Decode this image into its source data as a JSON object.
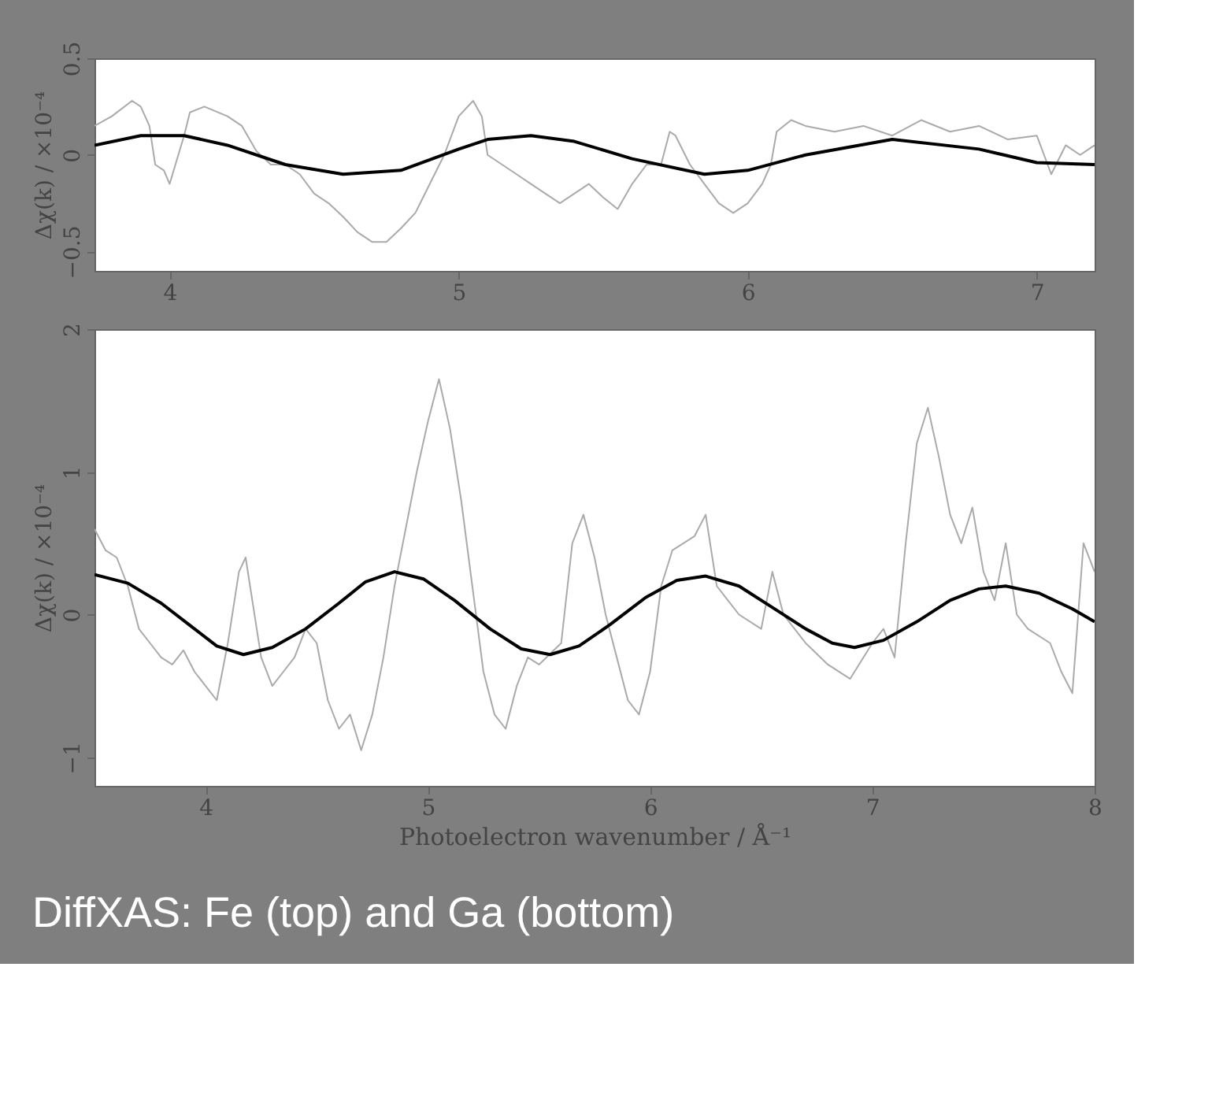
{
  "chart_data": [
    {
      "type": "line",
      "ylabel": "Δχ(k) / ×10⁻⁴",
      "xlim": [
        3.74,
        7.2
      ],
      "xticks": [
        4,
        5,
        6,
        7
      ],
      "ylim": [
        -0.6,
        0.5
      ],
      "yticks": [
        -0.5,
        0,
        0.5
      ],
      "grid": false,
      "line_style": "solid",
      "marker": "none",
      "series": [
        {
          "color": "#aaaaaa",
          "x": [
            3.74,
            3.8,
            3.87,
            3.9,
            3.93,
            3.95,
            3.98,
            4.0,
            4.02,
            4.05,
            4.07,
            4.12,
            4.2,
            4.25,
            4.3,
            4.35,
            4.4,
            4.45,
            4.5,
            4.55,
            4.6,
            4.65,
            4.7,
            4.75,
            4.8,
            4.85,
            4.9,
            4.95,
            5.0,
            5.05,
            5.08,
            5.1,
            5.15,
            5.2,
            5.25,
            5.3,
            5.35,
            5.4,
            5.45,
            5.5,
            5.55,
            5.6,
            5.65,
            5.7,
            5.73,
            5.75,
            5.8,
            5.85,
            5.9,
            5.95,
            6.0,
            6.05,
            6.08,
            6.1,
            6.15,
            6.2,
            6.3,
            6.4,
            6.5,
            6.6,
            6.7,
            6.8,
            6.9,
            7.0,
            7.05,
            7.1,
            7.15,
            7.2
          ],
          "values": [
            0.15,
            0.2,
            0.28,
            0.25,
            0.15,
            -0.05,
            -0.08,
            -0.15,
            -0.05,
            0.1,
            0.22,
            0.25,
            0.2,
            0.15,
            0.02,
            -0.05,
            -0.05,
            -0.1,
            -0.2,
            -0.25,
            -0.32,
            -0.4,
            -0.45,
            -0.45,
            -0.38,
            -0.3,
            -0.15,
            0.0,
            0.2,
            0.28,
            0.2,
            0.0,
            -0.05,
            -0.1,
            -0.15,
            -0.2,
            -0.25,
            -0.2,
            -0.15,
            -0.22,
            -0.28,
            -0.15,
            -0.05,
            -0.05,
            0.12,
            0.1,
            -0.05,
            -0.15,
            -0.25,
            -0.3,
            -0.25,
            -0.15,
            -0.05,
            0.12,
            0.18,
            0.15,
            0.12,
            0.15,
            0.1,
            0.18,
            0.12,
            0.15,
            0.08,
            0.1,
            -0.1,
            0.05,
            0.0,
            0.05
          ]
        },
        {
          "color": "#000000",
          "x": [
            3.74,
            3.9,
            4.05,
            4.2,
            4.4,
            4.6,
            4.8,
            5.0,
            5.1,
            5.25,
            5.4,
            5.6,
            5.85,
            6.0,
            6.2,
            6.5,
            6.8,
            7.0,
            7.2
          ],
          "values": [
            0.05,
            0.1,
            0.1,
            0.05,
            -0.05,
            -0.1,
            -0.08,
            0.03,
            0.08,
            0.1,
            0.07,
            -0.02,
            -0.1,
            -0.08,
            0.0,
            0.08,
            0.03,
            -0.04,
            -0.05
          ]
        }
      ]
    },
    {
      "type": "line",
      "ylabel": "Δχ(k) / ×10⁻⁴",
      "xlabel": "Photoelectron wavenumber / Å⁻¹",
      "xlim": [
        3.5,
        8
      ],
      "xticks": [
        4,
        5,
        6,
        7,
        8
      ],
      "ylim": [
        -1.2,
        2
      ],
      "yticks": [
        -1,
        0,
        1,
        2
      ],
      "grid": false,
      "line_style": "solid",
      "marker": "none",
      "annotations": [
        "DiffXAS: Fe (top) and Ga (bottom)"
      ],
      "series": [
        {
          "color": "#aaaaaa",
          "x": [
            3.5,
            3.55,
            3.6,
            3.65,
            3.7,
            3.75,
            3.8,
            3.85,
            3.9,
            3.95,
            4.0,
            4.05,
            4.1,
            4.15,
            4.18,
            4.2,
            4.25,
            4.3,
            4.35,
            4.4,
            4.45,
            4.5,
            4.55,
            4.6,
            4.65,
            4.7,
            4.75,
            4.8,
            4.85,
            4.9,
            4.95,
            5.0,
            5.05,
            5.1,
            5.15,
            5.2,
            5.25,
            5.3,
            5.35,
            5.4,
            5.45,
            5.5,
            5.6,
            5.65,
            5.7,
            5.75,
            5.8,
            5.85,
            5.9,
            5.95,
            6.0,
            6.05,
            6.1,
            6.2,
            6.25,
            6.3,
            6.4,
            6.5,
            6.55,
            6.6,
            6.7,
            6.8,
            6.9,
            7.0,
            7.05,
            7.1,
            7.15,
            7.2,
            7.25,
            7.3,
            7.35,
            7.4,
            7.45,
            7.5,
            7.55,
            7.6,
            7.65,
            7.7,
            7.8,
            7.85,
            7.9,
            7.95,
            8.0
          ],
          "values": [
            0.6,
            0.45,
            0.4,
            0.2,
            -0.1,
            -0.2,
            -0.3,
            -0.35,
            -0.25,
            -0.4,
            -0.5,
            -0.6,
            -0.2,
            0.3,
            0.4,
            0.2,
            -0.3,
            -0.5,
            -0.4,
            -0.3,
            -0.1,
            -0.2,
            -0.6,
            -0.8,
            -0.7,
            -0.95,
            -0.7,
            -0.3,
            0.2,
            0.6,
            1.0,
            1.35,
            1.65,
            1.3,
            0.8,
            0.2,
            -0.4,
            -0.7,
            -0.8,
            -0.5,
            -0.3,
            -0.35,
            -0.2,
            0.5,
            0.7,
            0.4,
            0.0,
            -0.3,
            -0.6,
            -0.7,
            -0.4,
            0.2,
            0.45,
            0.55,
            0.7,
            0.2,
            0.0,
            -0.1,
            0.3,
            0.0,
            -0.2,
            -0.35,
            -0.45,
            -0.2,
            -0.1,
            -0.3,
            0.5,
            1.2,
            1.45,
            1.1,
            0.7,
            0.5,
            0.75,
            0.3,
            0.1,
            0.5,
            0.0,
            -0.1,
            -0.2,
            -0.4,
            -0.55,
            0.5,
            0.3
          ]
        },
        {
          "color": "#000000",
          "x": [
            3.5,
            3.65,
            3.8,
            3.95,
            4.05,
            4.17,
            4.3,
            4.45,
            4.6,
            4.72,
            4.85,
            4.98,
            5.12,
            5.28,
            5.42,
            5.55,
            5.68,
            5.82,
            5.98,
            6.12,
            6.25,
            6.4,
            6.55,
            6.7,
            6.82,
            6.92,
            7.05,
            7.2,
            7.35,
            7.48,
            7.6,
            7.75,
            7.9,
            8.0
          ],
          "values": [
            0.28,
            0.22,
            0.08,
            -0.1,
            -0.22,
            -0.28,
            -0.23,
            -0.1,
            0.08,
            0.23,
            0.3,
            0.25,
            0.1,
            -0.1,
            -0.24,
            -0.28,
            -0.22,
            -0.07,
            0.12,
            0.24,
            0.27,
            0.2,
            0.05,
            -0.1,
            -0.2,
            -0.23,
            -0.18,
            -0.05,
            0.1,
            0.18,
            0.2,
            0.15,
            0.04,
            -0.05
          ]
        }
      ]
    }
  ]
}
